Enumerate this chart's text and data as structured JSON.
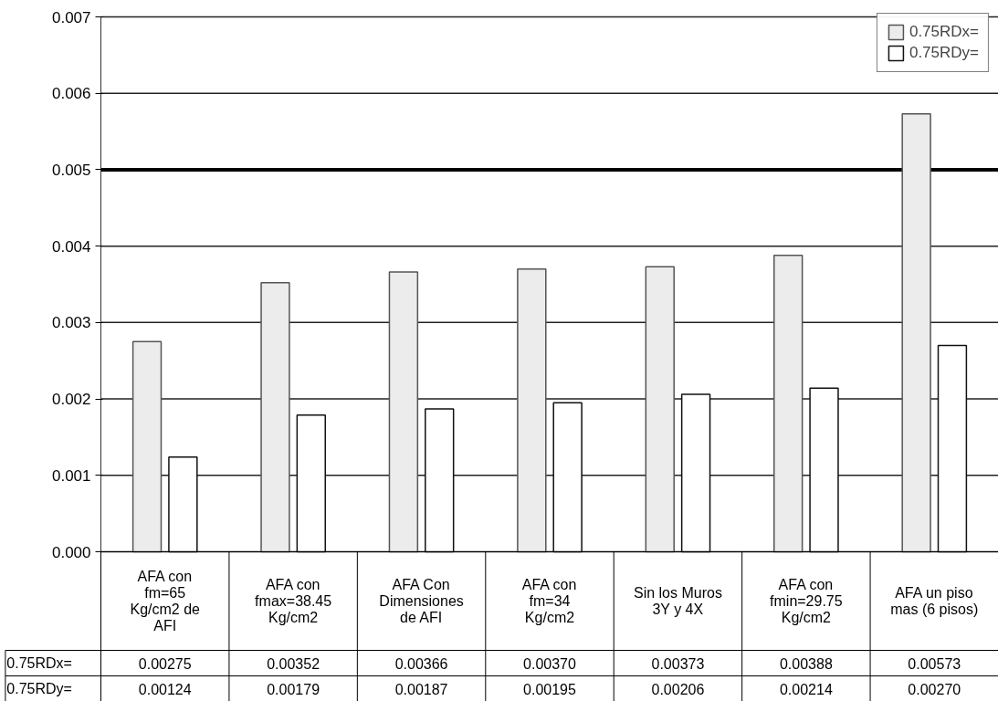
{
  "chart_data": {
    "type": "bar",
    "categories": [
      "AFA con\nfm=65\nKg/cm2 de\nAFI",
      "AFA con\nfmax=38.45\nKg/cm2",
      "AFA Con\nDimensiones\nde AFI",
      "AFA con\nfm=34\nKg/cm2",
      "Sin los Muros\n3Y y 4X",
      "AFA con\nfmin=29.75\nKg/cm2",
      "AFA un piso\nmas (6 pisos)"
    ],
    "series": [
      {
        "name": "0.75RDx=",
        "color": "#ececec",
        "values": [
          0.00275,
          0.00352,
          0.00366,
          0.0037,
          0.00373,
          0.00388,
          0.00573
        ],
        "value_labels": [
          "0.00275",
          "0.00352",
          "0.00366",
          "0.00370",
          "0.00373",
          "0.00388",
          "0.00573"
        ]
      },
      {
        "name": "0.75RDy=",
        "color": "#ffffff",
        "values": [
          0.00124,
          0.00179,
          0.00187,
          0.00195,
          0.00206,
          0.00214,
          0.0027
        ],
        "value_labels": [
          "0.00124",
          "0.00179",
          "0.00187",
          "0.00195",
          "0.00206",
          "0.00214",
          "0.00270"
        ]
      }
    ],
    "ylim": [
      0,
      0.007
    ],
    "yticks": [
      {
        "value": 0,
        "label": "0.000"
      },
      {
        "value": 0.001,
        "label": "0.001"
      },
      {
        "value": 0.002,
        "label": "0.002"
      },
      {
        "value": 0.003,
        "label": "0.003"
      },
      {
        "value": 0.004,
        "label": "0.004"
      },
      {
        "value": 0.005,
        "label": "0.005"
      },
      {
        "value": 0.006,
        "label": "0.006"
      },
      {
        "value": 0.007,
        "label": "0.007"
      }
    ],
    "ref_lines": [
      {
        "axis": "y",
        "value": 0.005,
        "label": null,
        "color": "#000000"
      }
    ],
    "grid": "y",
    "legend": "top right"
  }
}
